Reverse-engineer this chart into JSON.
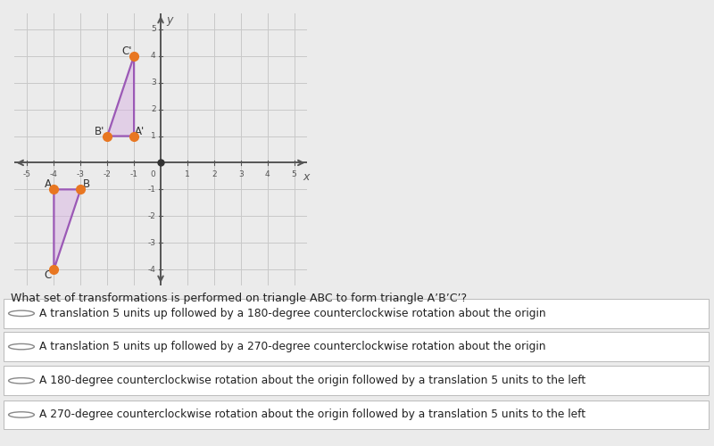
{
  "triangle_ABC": {
    "A": [
      -4,
      -1
    ],
    "B": [
      -3,
      -1
    ],
    "C": [
      -4,
      -4
    ]
  },
  "triangle_A1B1C1": {
    "A1": [
      -1,
      1
    ],
    "B1": [
      -2,
      1
    ],
    "C1": [
      -1,
      4
    ]
  },
  "triangle_color": "#9B59B6",
  "triangle_fill_color": "#D8B4E2",
  "triangle_fill_alpha": 0.5,
  "point_color": "#E87722",
  "point_size": 7,
  "bg_color": "#EBEBEB",
  "grid_color": "#C8C8C8",
  "axis_color": "#555555",
  "label_color": "#555555",
  "question_text": "What set of transformations is performed on triangle ABC to form triangle A’B’C’?",
  "options": [
    "A translation 5 units up followed by a 180-degree counterclockwise rotation about the origin",
    "A translation 5 units up followed by a 270-degree counterclockwise rotation about the origin",
    "A 180-degree counterclockwise rotation about the origin followed by a translation 5 units to the left",
    "A 270-degree counterclockwise rotation about the origin followed by a translation 5 units to the left"
  ],
  "xmin": -5.5,
  "xmax": 5.5,
  "ymin": -4.6,
  "ymax": 5.6,
  "tick_integers_x": [
    -5,
    -4,
    -3,
    -2,
    -1,
    1,
    2,
    3,
    4,
    5
  ],
  "tick_integers_y": [
    -4,
    -3,
    -2,
    -1,
    1,
    2,
    3,
    4,
    5
  ]
}
